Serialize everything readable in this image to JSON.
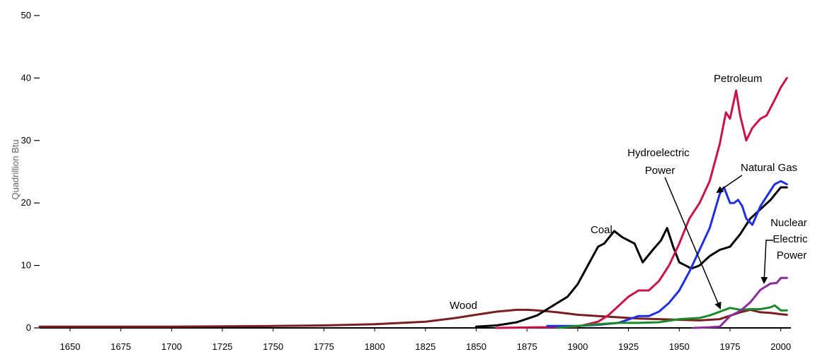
{
  "chart_data": {
    "type": "line",
    "title": "",
    "xlabel": "",
    "ylabel": "Quadrillion Btu",
    "xlim": [
      1635,
      2005
    ],
    "ylim": [
      0,
      50
    ],
    "yticks": [
      0,
      10,
      20,
      30,
      40,
      50
    ],
    "xticks": [
      1650,
      1675,
      1700,
      1725,
      1750,
      1775,
      1800,
      1825,
      1850,
      1875,
      1900,
      1925,
      1950,
      1975,
      2000
    ],
    "grid": false,
    "legend": "none",
    "series": [
      {
        "name": "Wood",
        "color": "#7a1f1f",
        "points": [
          [
            1635,
            0.2
          ],
          [
            1650,
            0.2
          ],
          [
            1700,
            0.2
          ],
          [
            1750,
            0.3
          ],
          [
            1775,
            0.4
          ],
          [
            1800,
            0.6
          ],
          [
            1825,
            1.0
          ],
          [
            1840,
            1.6
          ],
          [
            1850,
            2.1
          ],
          [
            1860,
            2.6
          ],
          [
            1870,
            2.9
          ],
          [
            1875,
            2.9
          ],
          [
            1880,
            2.8
          ],
          [
            1890,
            2.5
          ],
          [
            1900,
            2.1
          ],
          [
            1910,
            1.9
          ],
          [
            1920,
            1.7
          ],
          [
            1930,
            1.5
          ],
          [
            1940,
            1.4
          ],
          [
            1950,
            1.3
          ],
          [
            1960,
            1.2
          ],
          [
            1970,
            1.4
          ],
          [
            1980,
            2.5
          ],
          [
            1985,
            2.9
          ],
          [
            1990,
            2.5
          ],
          [
            1995,
            2.4
          ],
          [
            2000,
            2.2
          ],
          [
            2003,
            2.1
          ]
        ]
      },
      {
        "name": "Coal",
        "color": "#000000",
        "points": [
          [
            1850,
            0.2
          ],
          [
            1860,
            0.4
          ],
          [
            1870,
            0.9
          ],
          [
            1880,
            2.0
          ],
          [
            1890,
            4.0
          ],
          [
            1895,
            5.0
          ],
          [
            1900,
            7.0
          ],
          [
            1905,
            10.0
          ],
          [
            1910,
            13.0
          ],
          [
            1913,
            13.5
          ],
          [
            1918,
            15.5
          ],
          [
            1922,
            14.5
          ],
          [
            1928,
            13.5
          ],
          [
            1932,
            10.5
          ],
          [
            1937,
            12.5
          ],
          [
            1941,
            14.0
          ],
          [
            1944,
            16.0
          ],
          [
            1947,
            13.0
          ],
          [
            1950,
            10.5
          ],
          [
            1953,
            10.0
          ],
          [
            1956,
            9.5
          ],
          [
            1960,
            10.0
          ],
          [
            1965,
            11.5
          ],
          [
            1970,
            12.5
          ],
          [
            1975,
            13.0
          ],
          [
            1980,
            15.0
          ],
          [
            1985,
            17.5
          ],
          [
            1990,
            19.0
          ],
          [
            1995,
            20.5
          ],
          [
            2000,
            22.5
          ],
          [
            2003,
            22.5
          ]
        ]
      },
      {
        "name": "Petroleum",
        "color": "#c8144a",
        "points": [
          [
            1860,
            0.0
          ],
          [
            1880,
            0.1
          ],
          [
            1890,
            0.1
          ],
          [
            1900,
            0.2
          ],
          [
            1910,
            1.0
          ],
          [
            1915,
            2.0
          ],
          [
            1920,
            3.5
          ],
          [
            1925,
            5.0
          ],
          [
            1930,
            6.0
          ],
          [
            1935,
            6.0
          ],
          [
            1940,
            7.5
          ],
          [
            1945,
            10.0
          ],
          [
            1950,
            13.5
          ],
          [
            1955,
            17.5
          ],
          [
            1960,
            20.0
          ],
          [
            1965,
            23.5
          ],
          [
            1970,
            29.5
          ],
          [
            1973,
            34.5
          ],
          [
            1975,
            33.5
          ],
          [
            1978,
            38.0
          ],
          [
            1980,
            34.0
          ],
          [
            1983,
            30.0
          ],
          [
            1986,
            32.0
          ],
          [
            1990,
            33.5
          ],
          [
            1993,
            34.0
          ],
          [
            1997,
            36.5
          ],
          [
            2000,
            38.5
          ],
          [
            2003,
            40.0
          ]
        ]
      },
      {
        "name": "Natural Gas",
        "color": "#1f2fe0",
        "points": [
          [
            1885,
            0.3
          ],
          [
            1900,
            0.3
          ],
          [
            1910,
            0.5
          ],
          [
            1920,
            0.8
          ],
          [
            1930,
            1.9
          ],
          [
            1935,
            1.9
          ],
          [
            1940,
            2.6
          ],
          [
            1945,
            4.0
          ],
          [
            1950,
            6.0
          ],
          [
            1955,
            9.0
          ],
          [
            1960,
            12.5
          ],
          [
            1965,
            16.0
          ],
          [
            1970,
            21.5
          ],
          [
            1972,
            22.5
          ],
          [
            1975,
            20.0
          ],
          [
            1977,
            20.0
          ],
          [
            1979,
            20.5
          ],
          [
            1981,
            19.5
          ],
          [
            1983,
            17.5
          ],
          [
            1986,
            16.5
          ],
          [
            1990,
            19.5
          ],
          [
            1995,
            22.0
          ],
          [
            1997,
            23.0
          ],
          [
            2000,
            23.5
          ],
          [
            2003,
            23.0
          ]
        ]
      },
      {
        "name": "Hydroelectric Power",
        "color": "#1a8a2a",
        "points": [
          [
            1890,
            0.0
          ],
          [
            1900,
            0.3
          ],
          [
            1910,
            0.6
          ],
          [
            1920,
            0.8
          ],
          [
            1930,
            0.8
          ],
          [
            1940,
            0.9
          ],
          [
            1950,
            1.4
          ],
          [
            1960,
            1.6
          ],
          [
            1965,
            2.0
          ],
          [
            1970,
            2.6
          ],
          [
            1975,
            3.2
          ],
          [
            1980,
            2.9
          ],
          [
            1985,
            3.0
          ],
          [
            1990,
            3.0
          ],
          [
            1995,
            3.3
          ],
          [
            1997,
            3.6
          ],
          [
            2000,
            2.8
          ],
          [
            2003,
            2.8
          ]
        ]
      },
      {
        "name": "Nuclear Electric Power",
        "color": "#8a2c9a",
        "points": [
          [
            1957,
            0.0
          ],
          [
            1965,
            0.1
          ],
          [
            1970,
            0.2
          ],
          [
            1975,
            1.9
          ],
          [
            1980,
            2.7
          ],
          [
            1985,
            4.1
          ],
          [
            1990,
            6.1
          ],
          [
            1992,
            6.5
          ],
          [
            1995,
            7.1
          ],
          [
            1998,
            7.2
          ],
          [
            2000,
            8.0
          ],
          [
            2003,
            8.0
          ]
        ]
      }
    ],
    "annotations": [
      {
        "text": "Petroleum"
      },
      {
        "text": "Natural Gas"
      },
      {
        "lines": [
          "Hydroelectric",
          "Power"
        ]
      },
      {
        "text": "Coal"
      },
      {
        "lines": [
          "Nuclear",
          "Electric",
          "Power"
        ]
      },
      {
        "text": "Wood"
      }
    ]
  }
}
